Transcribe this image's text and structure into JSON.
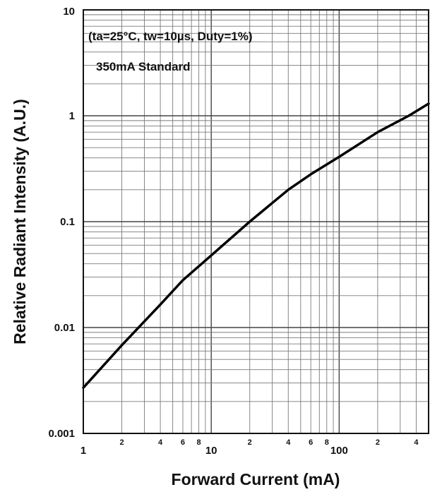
{
  "chart_data": {
    "type": "line",
    "title": "",
    "xlabel": "Forward Current (mA)",
    "ylabel": "Relative Radiant Intensity (A.U.)",
    "x_scale": "log",
    "y_scale": "log",
    "xlim": [
      1,
      500
    ],
    "ylim": [
      0.001,
      10
    ],
    "grid": true,
    "x_major_ticks": [
      {
        "value": 1,
        "label": "1"
      },
      {
        "value": 10,
        "label": "10"
      },
      {
        "value": 100,
        "label": "100"
      }
    ],
    "x_minor_ticks": [
      {
        "value": 2,
        "label": "2"
      },
      {
        "value": 4,
        "label": "4"
      },
      {
        "value": 6,
        "label": "6"
      },
      {
        "value": 8,
        "label": "8"
      },
      {
        "value": 20,
        "label": "2"
      },
      {
        "value": 40,
        "label": "4"
      },
      {
        "value": 60,
        "label": "6"
      },
      {
        "value": 80,
        "label": "8"
      },
      {
        "value": 200,
        "label": "2"
      },
      {
        "value": 400,
        "label": "4"
      }
    ],
    "y_ticks": [
      {
        "value": 0.001,
        "label": "0.001"
      },
      {
        "value": 0.01,
        "label": "0.01"
      },
      {
        "value": 0.1,
        "label": "0.1"
      },
      {
        "value": 1,
        "label": "1"
      },
      {
        "value": 10,
        "label": "10"
      }
    ],
    "annotations": [
      "(ta=25°C, tw=10µs, Duty=1%)",
      "350mA Standard"
    ],
    "series": [
      {
        "x": [
          1,
          2,
          4,
          6,
          10,
          20,
          40,
          60,
          100,
          200,
          350,
          500
        ],
        "y": [
          0.0027,
          0.0068,
          0.0165,
          0.028,
          0.048,
          0.1,
          0.2,
          0.28,
          0.41,
          0.7,
          1.0,
          1.3
        ]
      }
    ]
  }
}
